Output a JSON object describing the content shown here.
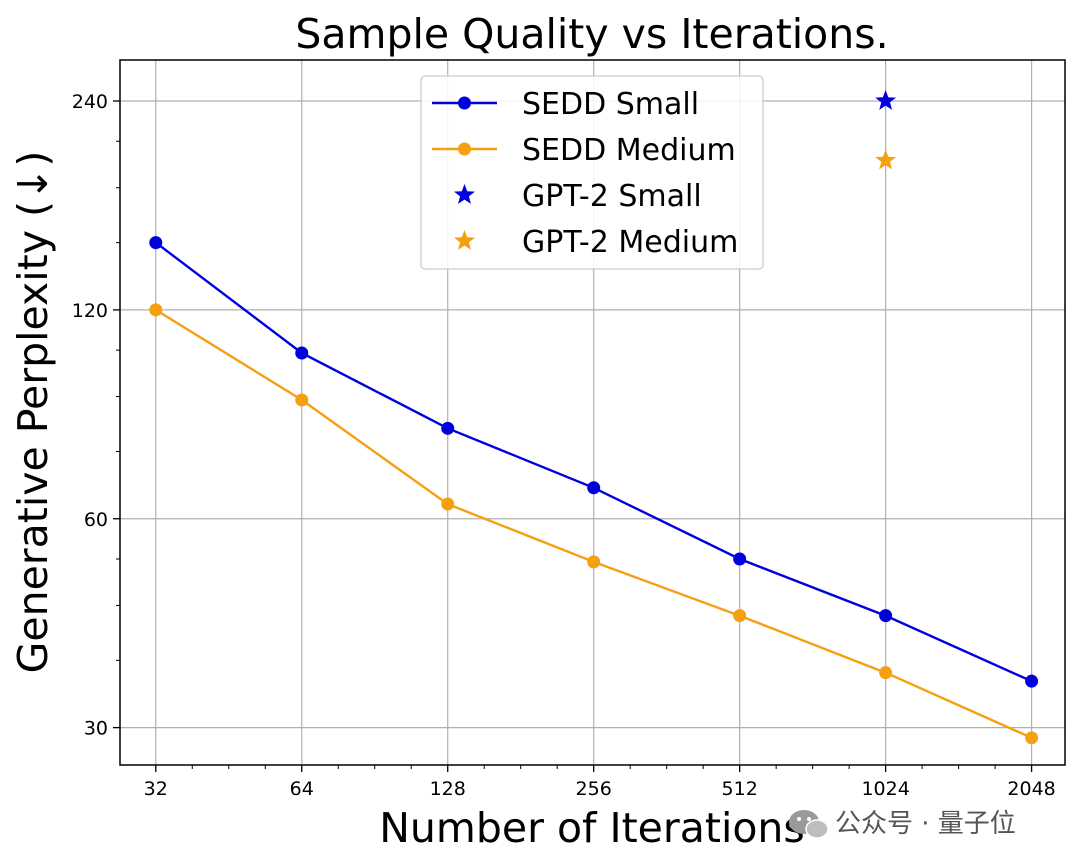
{
  "chart_data": {
    "type": "line",
    "title": "Sample Quality vs Iterations.",
    "xlabel": "Number of Iterations",
    "ylabel": "Generative Perplexity (↓)",
    "xscale": "log2",
    "yscale": "log",
    "xlim": [
      27,
      2400
    ],
    "ylim": [
      26.5,
      275
    ],
    "x": [
      32,
      64,
      128,
      256,
      512,
      1024,
      2048
    ],
    "xticks": [
      "32",
      "64",
      "128",
      "256",
      "512",
      "1024",
      "2048"
    ],
    "yticks": [
      30,
      60,
      120,
      240
    ],
    "yticklabels": [
      "30",
      "60",
      "120",
      "240"
    ],
    "grid": true,
    "legend_position": "top-center",
    "series": [
      {
        "name": "SEDD Small",
        "type": "line",
        "color": "#0000dd",
        "values": [
          150,
          104,
          81,
          66.5,
          52.5,
          43.5,
          35
        ]
      },
      {
        "name": "SEDD Medium",
        "type": "line",
        "color": "#f5a011",
        "values": [
          120,
          89,
          63,
          52,
          43.5,
          36,
          29
        ]
      },
      {
        "name": "GPT-2 Small",
        "type": "star",
        "color": "#0000dd",
        "points": [
          {
            "x": 1024,
            "y": 240
          }
        ]
      },
      {
        "name": "GPT-2 Medium",
        "type": "star",
        "color": "#f5a011",
        "points": [
          {
            "x": 1024,
            "y": 197
          }
        ]
      }
    ]
  },
  "watermark": {
    "text": "公众号 · 量子位",
    "icon": "wechat-icon"
  }
}
